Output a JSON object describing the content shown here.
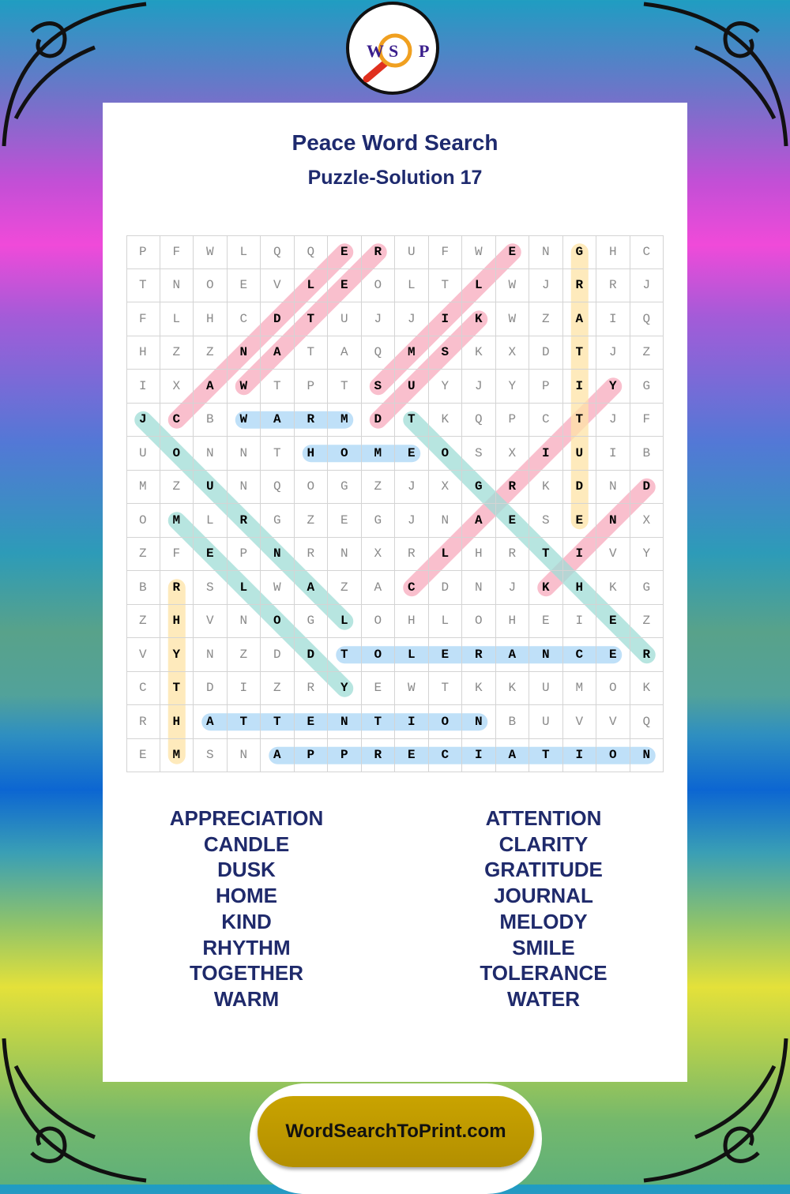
{
  "logo": {
    "letters": [
      "W",
      "S",
      "P"
    ],
    "icon": "magnifier-icon"
  },
  "header": {
    "title": "Peace Word Search",
    "subtitle": "Puzzle-Solution 17"
  },
  "grid": {
    "rows": [
      "PFWLQQERUFWENGHC",
      "TNOEVLEOLTLWJRRJ",
      "FLHCDTUJJIKWZAIQ",
      "HZZNATAQMSKXDTJZ",
      "IXAWTPTSUYJYPIYG",
      "JCBWARMDTKQPCTJF",
      "UONNTHOMEOSXIUIB",
      "MZUNQOGZJXGRKDND",
      "OMLRGZEGJNAESENX",
      "ZFEPNRNXRLHRTIVY",
      "BRSLWAZACDNJKHKG",
      "ZHVNOGLOHLOHEIEZ",
      "VYNZDDTOLERANCER",
      "CTDIZRYEWTKKUMOK",
      "RHATTENTIONBUVVQ",
      "EMSNAPPRECIATION"
    ]
  },
  "colors": {
    "pink": "#f7a9bc",
    "teal": "#9fdcd6",
    "blue": "#a9d6f5",
    "yellow": "#fde3a6",
    "title": "#1e2a6e",
    "button": "#c19b00"
  },
  "solutions": [
    {
      "word": "CANDLE",
      "start": [
        5,
        1
      ],
      "end": [
        0,
        6
      ],
      "color": "pink"
    },
    {
      "word": "WATER",
      "start": [
        4,
        3
      ],
      "end": [
        0,
        7
      ],
      "color": "pink"
    },
    {
      "word": "SMILE",
      "start": [
        4,
        7
      ],
      "end": [
        0,
        11
      ],
      "color": "pink"
    },
    {
      "word": "DUSK",
      "start": [
        5,
        7
      ],
      "end": [
        2,
        10
      ],
      "color": "pink"
    },
    {
      "word": "CLARITY",
      "start": [
        10,
        8
      ],
      "end": [
        4,
        14
      ],
      "color": "pink"
    },
    {
      "word": "KIND",
      "start": [
        10,
        12
      ],
      "end": [
        7,
        15
      ],
      "color": "pink"
    },
    {
      "word": "JOURNAL",
      "start": [
        5,
        0
      ],
      "end": [
        11,
        6
      ],
      "color": "teal"
    },
    {
      "word": "MELODY",
      "start": [
        8,
        1
      ],
      "end": [
        13,
        6
      ],
      "color": "teal"
    },
    {
      "word": "TOGETHER",
      "start": [
        5,
        8
      ],
      "end": [
        12,
        15
      ],
      "color": "teal"
    },
    {
      "word": "WARM",
      "start": [
        5,
        3
      ],
      "end": [
        5,
        6
      ],
      "color": "blue"
    },
    {
      "word": "HOME",
      "start": [
        6,
        5
      ],
      "end": [
        6,
        8
      ],
      "color": "blue"
    },
    {
      "word": "TOLERANCE",
      "start": [
        12,
        6
      ],
      "end": [
        12,
        14
      ],
      "color": "blue"
    },
    {
      "word": "ATTENTION",
      "start": [
        14,
        2
      ],
      "end": [
        14,
        10
      ],
      "color": "blue"
    },
    {
      "word": "APPRECIATION",
      "start": [
        15,
        4
      ],
      "end": [
        15,
        15
      ],
      "color": "blue"
    },
    {
      "word": "GRATITUDE",
      "start": [
        0,
        13
      ],
      "end": [
        8,
        13
      ],
      "color": "yellow"
    },
    {
      "word": "RHYTHM",
      "start": [
        10,
        1
      ],
      "end": [
        15,
        1
      ],
      "color": "yellow"
    }
  ],
  "word_list": {
    "left": [
      "APPRECIATION",
      "CANDLE",
      "DUSK",
      "HOME",
      "KIND",
      "RHYTHM",
      "TOGETHER",
      "WARM"
    ],
    "right": [
      "ATTENTION",
      "CLARITY",
      "GRATITUDE",
      "JOURNAL",
      "MELODY",
      "SMILE",
      "TOLERANCE",
      "WATER"
    ]
  },
  "footer": {
    "site_label": "WordSearchToPrint.com"
  }
}
